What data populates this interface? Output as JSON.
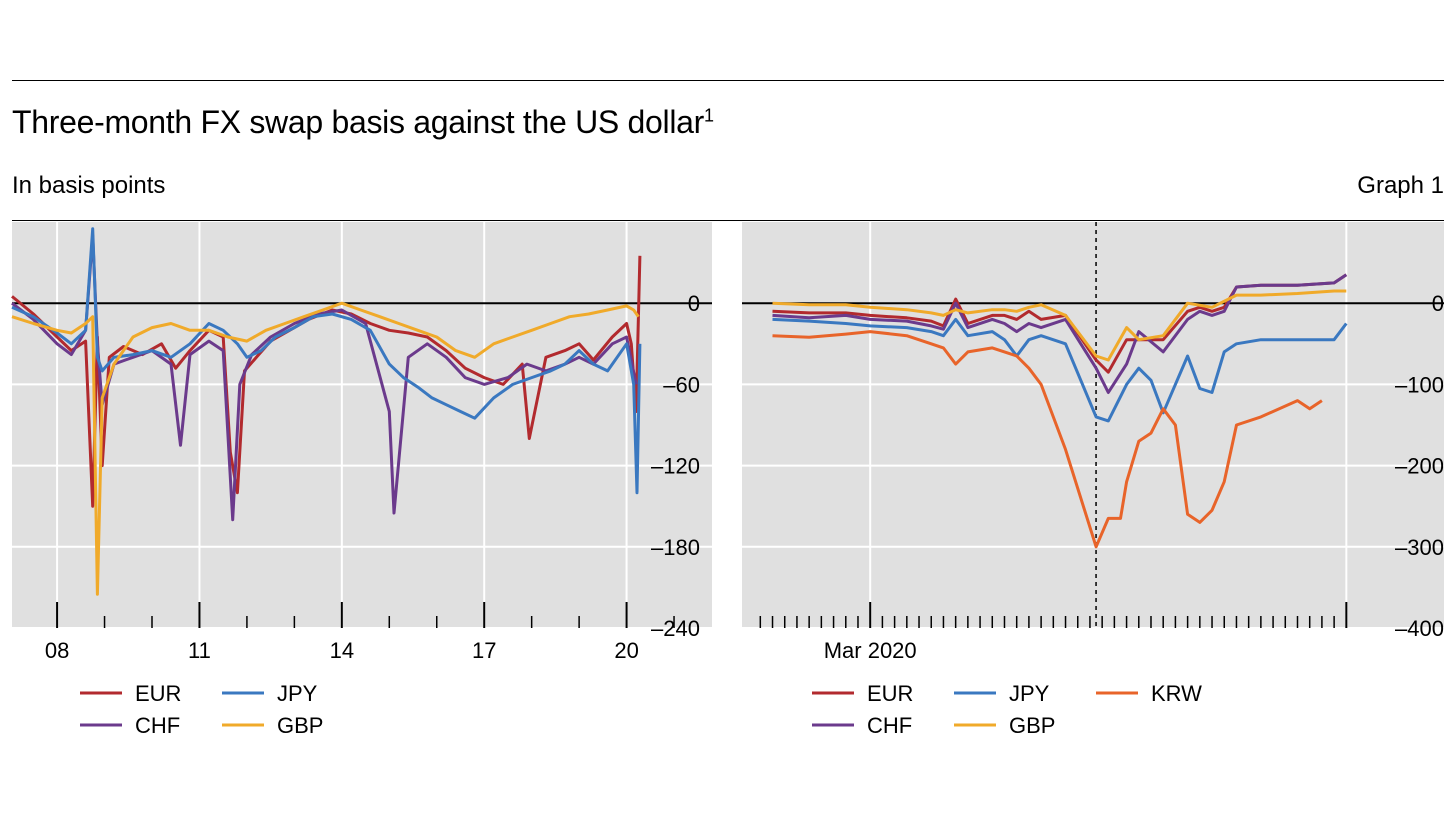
{
  "title": "Three-month FX swap basis against the US dollar",
  "title_footnote": "1",
  "subtitle": "In basis points",
  "graph_label": "Graph 1",
  "colors": {
    "EUR": "#b22a2e",
    "CHF": "#6b3a8c",
    "JPY": "#3a78c0",
    "GBP": "#f0aa2a",
    "KRW": "#e8642a",
    "plot_bg": "#e0e0e0",
    "grid": "#ffffff"
  },
  "chart_data": [
    {
      "type": "line",
      "title": "",
      "xlabel": "",
      "ylabel": "",
      "x_tick_labels": [
        "08",
        "11",
        "14",
        "17",
        "20"
      ],
      "x_range": [
        2007.05,
        2021.8
      ],
      "ylim": [
        -240,
        60
      ],
      "y_ticks": [
        0,
        -60,
        -120,
        -180,
        -240
      ],
      "y_tick_labels": [
        "0",
        "–60",
        "–120",
        "–180",
        "–240"
      ],
      "grid": true,
      "zero_line": true,
      "legend": {
        "placement": "bottom-left",
        "entries": [
          "EUR",
          "CHF",
          "JPY",
          "GBP"
        ]
      },
      "series": [
        {
          "name": "EUR",
          "x": [
            2007.05,
            2007.5,
            2008.0,
            2008.3,
            2008.6,
            2008.75,
            2008.85,
            2008.95,
            2009.1,
            2009.4,
            2009.8,
            2010.2,
            2010.5,
            2010.8,
            2011.2,
            2011.5,
            2011.65,
            2011.8,
            2011.95,
            2012.2,
            2012.5,
            2012.9,
            2013.3,
            2013.8,
            2014.2,
            2014.6,
            2015.0,
            2015.4,
            2015.8,
            2016.2,
            2016.6,
            2017.0,
            2017.4,
            2017.8,
            2017.95,
            2018.3,
            2018.7,
            2019.0,
            2019.3,
            2019.7,
            2020.0,
            2020.1,
            2020.2,
            2020.28
          ],
          "y": [
            5,
            -8,
            -25,
            -35,
            -28,
            -150,
            -25,
            -120,
            -40,
            -32,
            -38,
            -30,
            -48,
            -35,
            -20,
            -25,
            -110,
            -140,
            -50,
            -40,
            -28,
            -20,
            -12,
            -5,
            -8,
            -15,
            -20,
            -22,
            -25,
            -35,
            -48,
            -55,
            -60,
            -45,
            -100,
            -40,
            -35,
            -30,
            -42,
            -25,
            -15,
            -30,
            -80,
            35
          ]
        },
        {
          "name": "CHF",
          "x": [
            2007.05,
            2007.5,
            2008.0,
            2008.3,
            2008.6,
            2008.75,
            2008.85,
            2008.95,
            2009.2,
            2009.6,
            2010.0,
            2010.4,
            2010.6,
            2010.8,
            2011.2,
            2011.5,
            2011.7,
            2011.85,
            2012.1,
            2012.5,
            2013.0,
            2013.5,
            2014.0,
            2014.5,
            2015.0,
            2015.1,
            2015.4,
            2015.8,
            2016.2,
            2016.6,
            2017.0,
            2017.5,
            2017.9,
            2018.3,
            2018.7,
            2019.0,
            2019.3,
            2019.7,
            2020.0,
            2020.2
          ],
          "y": [
            0,
            -12,
            -30,
            -38,
            -20,
            50,
            -30,
            -75,
            -45,
            -40,
            -35,
            -45,
            -105,
            -38,
            -28,
            -35,
            -160,
            -60,
            -38,
            -25,
            -15,
            -8,
            -5,
            -15,
            -80,
            -155,
            -40,
            -30,
            -40,
            -55,
            -60,
            -55,
            -45,
            -50,
            -45,
            -40,
            -45,
            -30,
            -25,
            -60
          ]
        },
        {
          "name": "JPY",
          "x": [
            2007.05,
            2007.5,
            2008.0,
            2008.3,
            2008.6,
            2008.75,
            2008.85,
            2008.95,
            2009.2,
            2009.6,
            2010.0,
            2010.4,
            2010.8,
            2011.2,
            2011.5,
            2011.8,
            2012.0,
            2012.3,
            2012.6,
            2013.0,
            2013.4,
            2013.8,
            2014.2,
            2014.6,
            2015.0,
            2015.3,
            2015.6,
            2015.9,
            2016.2,
            2016.5,
            2016.8,
            2017.2,
            2017.6,
            2018.0,
            2018.4,
            2018.7,
            2019.0,
            2019.3,
            2019.6,
            2020.0,
            2020.15,
            2020.22,
            2020.28
          ],
          "y": [
            -3,
            -10,
            -22,
            -30,
            -20,
            55,
            -40,
            -50,
            -40,
            -38,
            -35,
            -40,
            -30,
            -15,
            -20,
            -30,
            -40,
            -35,
            -25,
            -18,
            -10,
            -8,
            -12,
            -20,
            -45,
            -55,
            -62,
            -70,
            -75,
            -80,
            -85,
            -70,
            -60,
            -55,
            -50,
            -45,
            -35,
            -45,
            -50,
            -30,
            -60,
            -140,
            -30
          ]
        },
        {
          "name": "GBP",
          "x": [
            2007.05,
            2007.5,
            2008.0,
            2008.3,
            2008.6,
            2008.75,
            2008.85,
            2008.95,
            2009.2,
            2009.6,
            2010.0,
            2010.4,
            2010.8,
            2011.2,
            2011.6,
            2012.0,
            2012.4,
            2012.8,
            2013.2,
            2013.6,
            2014.0,
            2014.4,
            2014.8,
            2015.2,
            2015.6,
            2016.0,
            2016.4,
            2016.8,
            2017.2,
            2017.6,
            2018.0,
            2018.4,
            2018.8,
            2019.2,
            2019.6,
            2020.0,
            2020.15,
            2020.25
          ],
          "y": [
            -10,
            -15,
            -20,
            -22,
            -15,
            -10,
            -215,
            -70,
            -45,
            -25,
            -18,
            -15,
            -20,
            -20,
            -25,
            -28,
            -20,
            -15,
            -10,
            -5,
            0,
            -5,
            -10,
            -15,
            -20,
            -25,
            -35,
            -40,
            -30,
            -25,
            -20,
            -15,
            -10,
            -8,
            -5,
            -2,
            -5,
            -10
          ]
        }
      ]
    },
    {
      "type": "line",
      "title": "",
      "xlabel": "",
      "ylabel": "",
      "x_tick_labels": [
        "Mar 2020"
      ],
      "x_range": [
        -10.5,
        47.0
      ],
      "ylim": [
        -400,
        100
      ],
      "y_ticks": [
        0,
        -100,
        -200,
        -300,
        -400
      ],
      "y_tick_labels": [
        "0",
        "–100",
        "–200",
        "–300",
        "–400"
      ],
      "grid": true,
      "zero_line": true,
      "event_line_x": 18.5,
      "legend": {
        "placement": "bottom-left",
        "entries": [
          "EUR",
          "CHF",
          "JPY",
          "GBP",
          "KRW"
        ]
      },
      "series": [
        {
          "name": "EUR",
          "x": [
            -8,
            -5,
            -2,
            0,
            3,
            5,
            6,
            7,
            8,
            10,
            11,
            12,
            13,
            14,
            16,
            18.5,
            19.5,
            21,
            22,
            24,
            26,
            27,
            28,
            29,
            30,
            32,
            35,
            38,
            39
          ],
          "y": [
            -10,
            -12,
            -12,
            -15,
            -18,
            -22,
            -28,
            5,
            -25,
            -15,
            -15,
            -20,
            -10,
            -20,
            -15,
            -70,
            -85,
            -45,
            -45,
            -45,
            -10,
            -5,
            -10,
            -5,
            20,
            22,
            22,
            25,
            35
          ]
        },
        {
          "name": "CHF",
          "x": [
            -8,
            -5,
            -2,
            0,
            3,
            5,
            6,
            7,
            8,
            10,
            11,
            12,
            13,
            14,
            16,
            18.5,
            19.5,
            21,
            22,
            24,
            26,
            27,
            28,
            29,
            30,
            32,
            35,
            38,
            39
          ],
          "y": [
            -15,
            -18,
            -15,
            -20,
            -22,
            -28,
            -32,
            0,
            -30,
            -20,
            -25,
            -35,
            -25,
            -30,
            -20,
            -80,
            -110,
            -75,
            -35,
            -60,
            -20,
            -10,
            -15,
            -10,
            20,
            22,
            22,
            25,
            35
          ]
        },
        {
          "name": "JPY",
          "x": [
            -8,
            -5,
            -2,
            0,
            3,
            5,
            6,
            7,
            8,
            10,
            11,
            12,
            13,
            14,
            16,
            18.5,
            19.5,
            21,
            22,
            23,
            24,
            26,
            27,
            28,
            29,
            30,
            32,
            35,
            38,
            39
          ],
          "y": [
            -20,
            -22,
            -25,
            -28,
            -30,
            -35,
            -40,
            -20,
            -40,
            -35,
            -45,
            -65,
            -45,
            -40,
            -50,
            -140,
            -145,
            -100,
            -80,
            -95,
            -135,
            -65,
            -105,
            -110,
            -60,
            -50,
            -45,
            -45,
            -45,
            -25
          ]
        },
        {
          "name": "GBP",
          "x": [
            -8,
            -5,
            -2,
            0,
            3,
            5,
            6,
            7,
            8,
            10,
            11,
            12,
            13,
            14,
            16,
            18.5,
            19.5,
            21,
            22,
            24,
            26,
            28,
            30,
            32,
            35,
            38,
            39
          ],
          "y": [
            0,
            -2,
            -2,
            -5,
            -8,
            -12,
            -15,
            -8,
            -12,
            -8,
            -8,
            -10,
            -5,
            -2,
            -15,
            -65,
            -70,
            -30,
            -45,
            -40,
            0,
            -5,
            10,
            10,
            12,
            15,
            15
          ]
        },
        {
          "name": "KRW",
          "x": [
            -8,
            -5,
            -2,
            0,
            3,
            5,
            6,
            7,
            8,
            10,
            11,
            12,
            13,
            14,
            16,
            18.5,
            19.5,
            20.5,
            21,
            22,
            23,
            24,
            25,
            26,
            27,
            28,
            29,
            30,
            32,
            35,
            36,
            37
          ],
          "y": [
            -40,
            -42,
            -38,
            -35,
            -40,
            -50,
            -55,
            -75,
            -60,
            -55,
            -60,
            -65,
            -80,
            -100,
            -180,
            -300,
            -265,
            -265,
            -220,
            -170,
            -160,
            -130,
            -150,
            -260,
            -270,
            -255,
            -220,
            -150,
            -140,
            -120,
            -130,
            -120
          ]
        }
      ]
    }
  ]
}
